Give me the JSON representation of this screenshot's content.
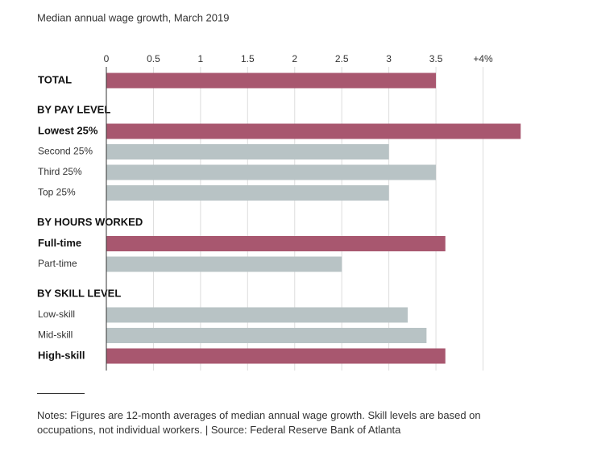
{
  "chart_data": {
    "type": "bar",
    "title": "Median annual wage growth, March 2019",
    "xlim": [
      0,
      4
    ],
    "xticks": [
      0,
      0.5,
      1,
      1.5,
      2,
      2.5,
      3,
      3.5,
      {
        "value": 4,
        "label": "+4%"
      }
    ],
    "grid": true,
    "color": "#b8c3c5",
    "highlight_color": "#a8576f",
    "groups": [
      {
        "bars": [
          {
            "label": "TOTAL",
            "value": 3.5,
            "highlight": true
          }
        ]
      },
      {
        "name": "BY PAY LEVEL",
        "bars": [
          {
            "label": "Lowest 25%",
            "value": 4.4,
            "highlight": true
          },
          {
            "label": "Second 25%",
            "value": 3.0,
            "highlight": false
          },
          {
            "label": "Third 25%",
            "value": 3.5,
            "highlight": false
          },
          {
            "label": "Top 25%",
            "value": 3.0,
            "highlight": false
          }
        ]
      },
      {
        "name": "BY HOURS WORKED",
        "bars": [
          {
            "label": "Full-time",
            "value": 3.6,
            "highlight": true
          },
          {
            "label": "Part-time",
            "value": 2.5,
            "highlight": false
          }
        ]
      },
      {
        "name": "BY SKILL LEVEL",
        "bars": [
          {
            "label": "Low-skill",
            "value": 3.2,
            "highlight": false
          },
          {
            "label": "Mid-skill",
            "value": 3.4,
            "highlight": false
          },
          {
            "label": "High-skill",
            "value": 3.6,
            "highlight": true
          }
        ]
      }
    ],
    "notes": "Notes: Figures are 12-month averages of median annual wage growth. Skill levels are based on occupations, not individual workers. | Source: Federal Reserve Bank of Atlanta"
  }
}
